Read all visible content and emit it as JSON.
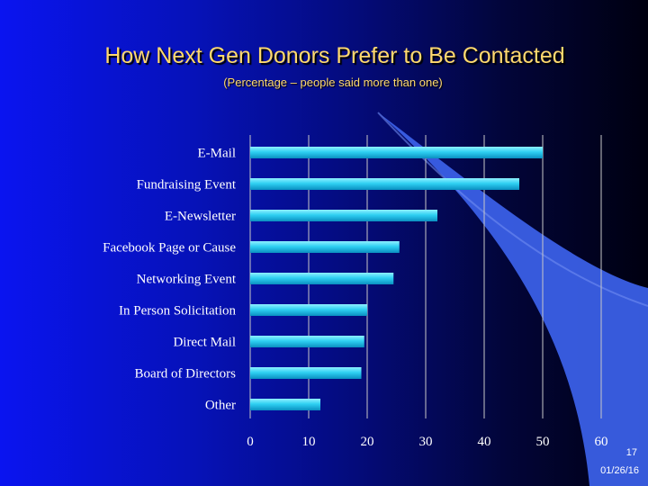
{
  "slide": {
    "number": "17",
    "date": "01/26/16"
  },
  "chart_data": {
    "type": "bar",
    "orientation": "horizontal",
    "title": "How Next Gen Donors Prefer to Be Contacted",
    "subtitle": "(Percentage – people said more than one)",
    "categories": [
      "E-Mail",
      "Fundraising Event",
      "E-Newsletter",
      "Facebook Page or Cause",
      "Networking Event",
      "In Person Solicitation",
      "Direct Mail",
      "Board of Directors",
      "Other"
    ],
    "values": [
      50,
      46,
      32,
      25.5,
      24.5,
      20,
      19.5,
      19,
      12
    ],
    "xlim": [
      0,
      60
    ],
    "xticks": [
      "0",
      "10",
      "20",
      "30",
      "40",
      "50",
      "60"
    ],
    "grid": true,
    "colors": {
      "bar": "#2fd0f2",
      "grid": "#c8c8c8",
      "text": "#ffffff",
      "title": "#ffd96e"
    }
  }
}
